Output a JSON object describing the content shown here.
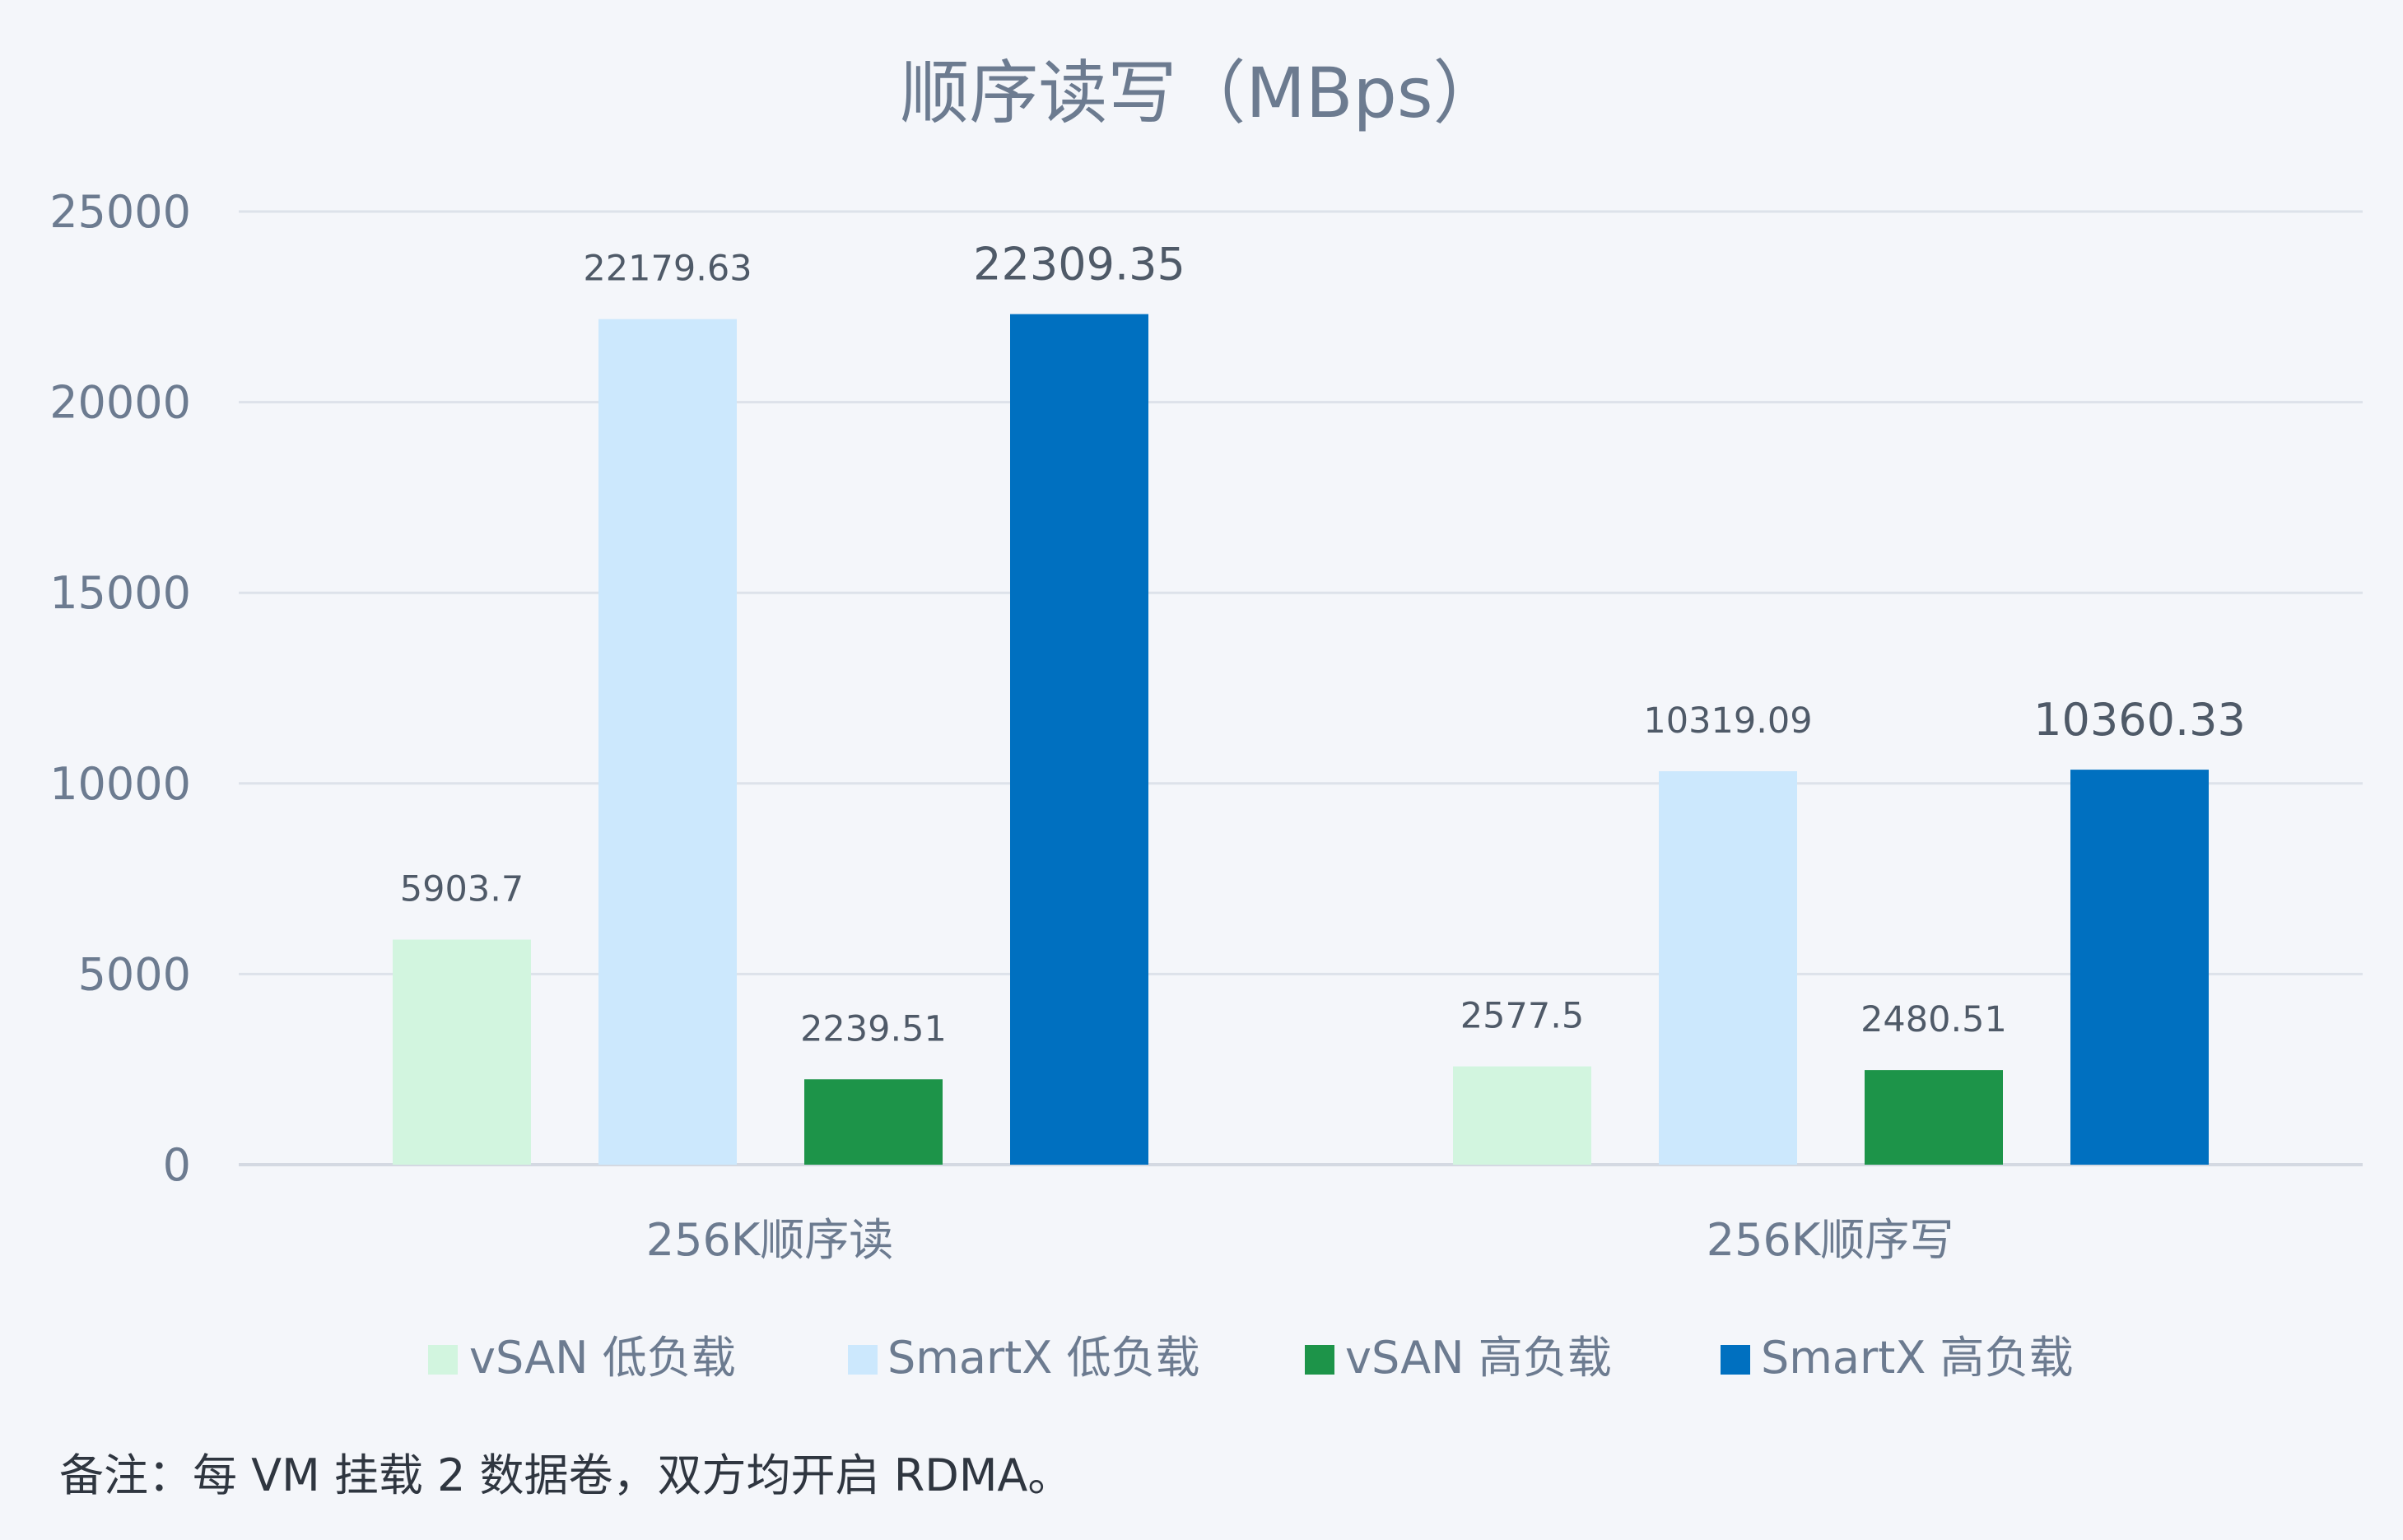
{
  "chart_data": {
    "type": "bar",
    "title": "顺序读写（MBps）",
    "categories": [
      "256K顺序读",
      "256K顺序写"
    ],
    "series": [
      {
        "name": "vSAN 低负载",
        "values": [
          5903.7,
          2577.5
        ],
        "color": "#d2f5df"
      },
      {
        "name": "SmartX 低负载",
        "values": [
          22179.63,
          10319.09
        ],
        "color": "#cce8fd"
      },
      {
        "name": "vSAN 高负载",
        "values": [
          2239.51,
          2480.51
        ],
        "color": "#1d9449"
      },
      {
        "name": "SmartX 高负载",
        "values": [
          22309.35,
          10360.33
        ],
        "color": "#0070c0"
      }
    ],
    "data_labels": [
      [
        "5903.7",
        "2577.5"
      ],
      [
        "22179.63",
        "10319.09"
      ],
      [
        "2239.51",
        "2480.51"
      ],
      [
        "22309.35",
        "10360.33"
      ]
    ],
    "y_ticks": [
      "0",
      "5000",
      "10000",
      "15000",
      "20000",
      "25000"
    ],
    "ylim": [
      0,
      25000
    ],
    "xlabel": "",
    "ylabel": "",
    "grid": true,
    "legend_position": "bottom"
  },
  "footnote": "备注：每 VM 挂载 2 数据卷，双方均开启 RDMA。"
}
